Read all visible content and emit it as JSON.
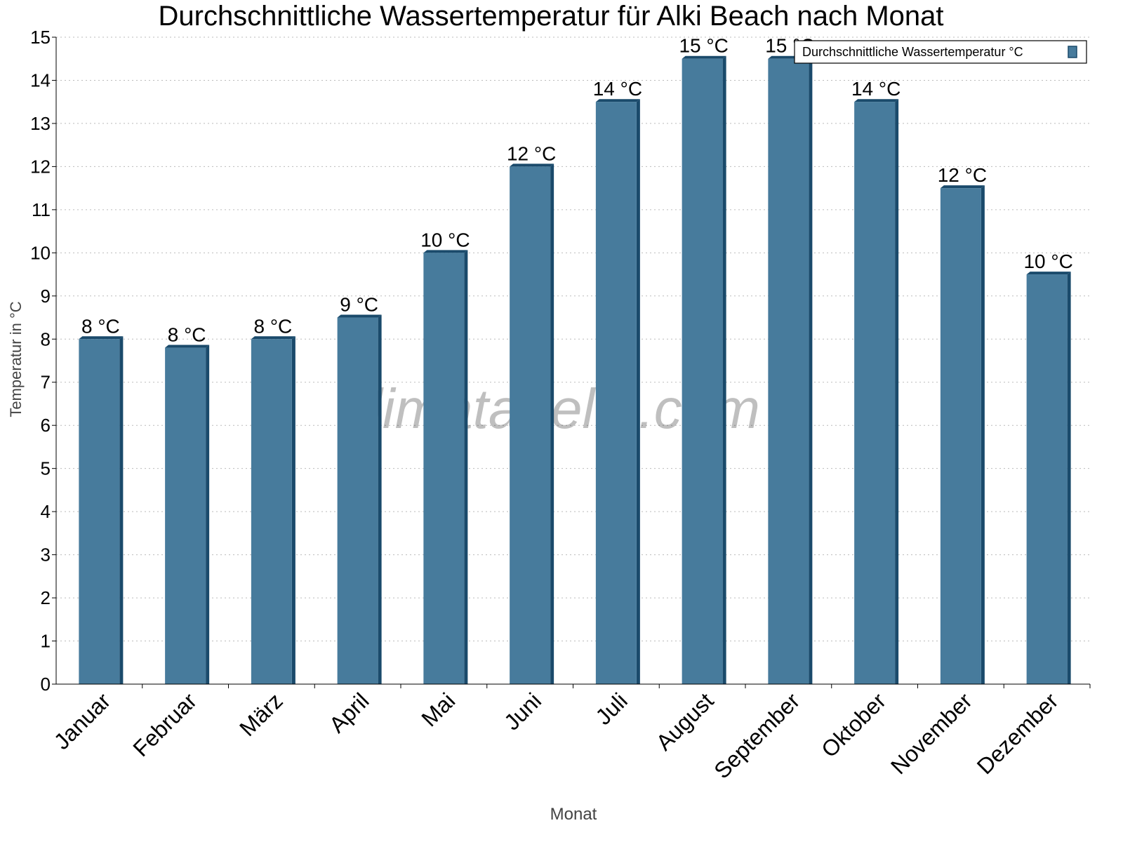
{
  "chart_data": {
    "type": "bar",
    "title": "Durchschnittliche Wassertemperatur für Alki Beach nach Monat",
    "xlabel": "Monat",
    "ylabel": "Temperatur in °C",
    "ylim": [
      0,
      15
    ],
    "yticks": [
      0,
      1,
      2,
      3,
      4,
      5,
      6,
      7,
      8,
      9,
      10,
      11,
      12,
      13,
      14,
      15
    ],
    "grid": true,
    "legend_placement": "top-right",
    "categories": [
      "Januar",
      "Februar",
      "März",
      "April",
      "Mai",
      "Juni",
      "Juli",
      "August",
      "September",
      "Oktober",
      "November",
      "Dezember"
    ],
    "series": [
      {
        "name": "Durchschnittliche Wassertemperatur °C",
        "values": [
          8,
          7.8,
          8,
          8.5,
          10,
          12,
          13.5,
          14.5,
          14.5,
          13.5,
          11.5,
          9.5
        ],
        "labels": [
          "8 °C",
          "8 °C",
          "8 °C",
          "9 °C",
          "10 °C",
          "12 °C",
          "14 °C",
          "15 °C",
          "15 °C",
          "14 °C",
          "12 °C",
          "10 °C"
        ]
      }
    ],
    "colors": {
      "bar": "#477b9c",
      "bar_edge": "#1a4a6b"
    },
    "watermark": "klimatabelle.com"
  }
}
